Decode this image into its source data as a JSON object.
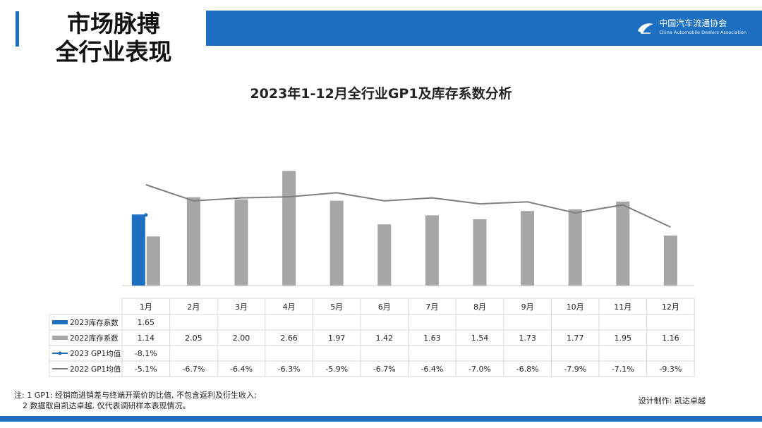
{
  "header": {
    "title_line1": "市场脉搏",
    "title_line2": "全行业表现",
    "logo_cn": "中国汽车流通协会",
    "logo_en": "China Automobile Dealers Association",
    "logo_icon": "cada-logo-icon",
    "accent_color": "#1d6fc2"
  },
  "chart_data": {
    "type": "bar",
    "title": "2023年1-12月全行业GP1及库存系数分析",
    "categories": [
      "1月",
      "2月",
      "3月",
      "4月",
      "5月",
      "6月",
      "7月",
      "8月",
      "9月",
      "10月",
      "11月",
      "12月"
    ],
    "series": [
      {
        "name": "2023库存系数",
        "kind": "bar",
        "color": "#1d6fc2",
        "values": [
          1.65,
          null,
          null,
          null,
          null,
          null,
          null,
          null,
          null,
          null,
          null,
          null
        ],
        "labels": [
          "1.65",
          "",
          "",
          "",
          "",
          "",
          "",
          "",
          "",
          "",
          "",
          ""
        ]
      },
      {
        "name": "2022库存系数",
        "kind": "bar",
        "color": "#a6a6a6",
        "values": [
          1.14,
          2.05,
          2.0,
          2.66,
          1.97,
          1.42,
          1.63,
          1.54,
          1.73,
          1.77,
          1.95,
          1.16
        ],
        "labels": [
          "1.14",
          "2.05",
          "2.00",
          "2.66",
          "1.97",
          "1.42",
          "1.63",
          "1.54",
          "1.73",
          "1.77",
          "1.95",
          "1.16"
        ]
      },
      {
        "name": "2023 GP1均值",
        "kind": "line",
        "color": "#1d6fc2",
        "values": [
          -8.1,
          null,
          null,
          null,
          null,
          null,
          null,
          null,
          null,
          null,
          null,
          null
        ],
        "labels": [
          "-8.1%",
          "",
          "",
          "",
          "",
          "",
          "",
          "",
          "",
          "",
          "",
          ""
        ]
      },
      {
        "name": "2022 GP1均值",
        "kind": "line",
        "color": "#7f7f7f",
        "values": [
          -5.1,
          -6.7,
          -6.4,
          -6.3,
          -5.9,
          -6.7,
          -6.4,
          -7.0,
          -6.8,
          -7.9,
          -7.1,
          -9.3
        ],
        "labels": [
          "-5.1%",
          "-6.7%",
          "-6.4%",
          "-6.3%",
          "-5.9%",
          "-6.7%",
          "-6.4%",
          "-7.0%",
          "-6.8%",
          "-7.9%",
          "-7.1%",
          "-9.3%"
        ]
      }
    ],
    "bar_ylim": [
      0,
      2.7
    ],
    "line_ylim": [
      -13.5,
      -3
    ],
    "grid": false,
    "legend": "table-left"
  },
  "footer": {
    "note_line1": "注: 1 GP1: 经销商进销差与终端开票价的比值, 不包含返利及衍生收入;",
    "note_line2": "2 数据取自凯达卓越, 仅代表调研样本表现情况。",
    "credit": "设计制作: 凯达卓越"
  }
}
